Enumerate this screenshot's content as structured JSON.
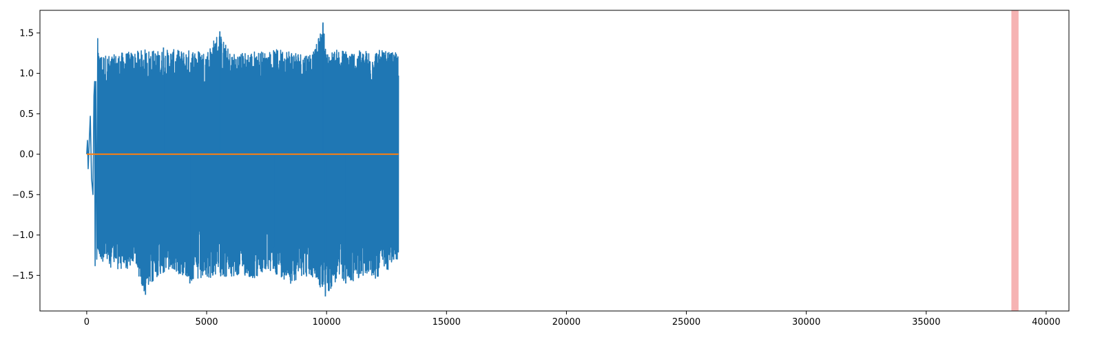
{
  "chart_data": {
    "type": "line",
    "title": "",
    "xlabel": "",
    "ylabel": "",
    "xlim": [
      -1950,
      40950
    ],
    "ylim": [
      -1.94,
      1.78
    ],
    "xticks": [
      0,
      5000,
      10000,
      15000,
      20000,
      25000,
      30000,
      35000,
      40000
    ],
    "xtick_labels": [
      "0",
      "5000",
      "10000",
      "15000",
      "20000",
      "25000",
      "30000",
      "35000",
      "40000"
    ],
    "yticks": [
      -1.5,
      -1.0,
      -0.5,
      0.0,
      0.5,
      1.0,
      1.5
    ],
    "ytick_labels": [
      "−1.5",
      "−1.0",
      "−0.5",
      "0.0",
      "0.5",
      "1.0",
      "1.5"
    ],
    "grid": false,
    "legend": "none",
    "series": [
      {
        "color": "#1f77b4",
        "x_range": [
          0,
          13000
        ],
        "description": "dense oscillating signal",
        "startup": [
          [
            0,
            0.0
          ],
          [
            30,
            0.17
          ],
          [
            60,
            -0.18
          ],
          [
            100,
            0.12
          ],
          [
            150,
            0.47
          ],
          [
            200,
            -0.3
          ],
          [
            260,
            -0.5
          ],
          [
            300,
            0.72
          ],
          [
            330,
            0.9
          ],
          [
            350,
            -1.38
          ],
          [
            380,
            0.9
          ],
          [
            420,
            -1.3
          ],
          [
            460,
            1.43
          ]
        ],
        "envelope_top": [
          [
            500,
            1.25
          ],
          [
            1000,
            1.22
          ],
          [
            1500,
            1.26
          ],
          [
            2000,
            1.27
          ],
          [
            2500,
            1.3
          ],
          [
            3000,
            1.28
          ],
          [
            3500,
            1.3
          ],
          [
            4000,
            1.28
          ],
          [
            4500,
            1.3
          ],
          [
            5000,
            1.27
          ],
          [
            5500,
            1.52
          ],
          [
            6000,
            1.25
          ],
          [
            6500,
            1.26
          ],
          [
            7000,
            1.28
          ],
          [
            7500,
            1.27
          ],
          [
            8000,
            1.3
          ],
          [
            8500,
            1.3
          ],
          [
            9000,
            1.25
          ],
          [
            9500,
            1.28
          ],
          [
            9850,
            1.63
          ],
          [
            10000,
            1.25
          ],
          [
            10500,
            1.3
          ],
          [
            11000,
            1.28
          ],
          [
            11500,
            1.28
          ],
          [
            12000,
            1.3
          ],
          [
            12500,
            1.27
          ],
          [
            13000,
            1.25
          ]
        ],
        "envelope_bottom": [
          [
            500,
            -1.3
          ],
          [
            1000,
            -1.4
          ],
          [
            1500,
            -1.45
          ],
          [
            2000,
            -1.38
          ],
          [
            2450,
            -1.74
          ],
          [
            3000,
            -1.5
          ],
          [
            3500,
            -1.45
          ],
          [
            4000,
            -1.5
          ],
          [
            4500,
            -1.6
          ],
          [
            5000,
            -1.55
          ],
          [
            5500,
            -1.5
          ],
          [
            6000,
            -1.55
          ],
          [
            6500,
            -1.5
          ],
          [
            7000,
            -1.55
          ],
          [
            7500,
            -1.45
          ],
          [
            8000,
            -1.5
          ],
          [
            8500,
            -1.6
          ],
          [
            9000,
            -1.5
          ],
          [
            9500,
            -1.55
          ],
          [
            9950,
            -1.76
          ],
          [
            10500,
            -1.55
          ],
          [
            11000,
            -1.6
          ],
          [
            11500,
            -1.5
          ],
          [
            12000,
            -1.55
          ],
          [
            12500,
            -1.45
          ],
          [
            13000,
            -1.3
          ]
        ],
        "spikes": [
          [
            5550,
            1.52
          ],
          [
            9850,
            1.63
          ],
          [
            2450,
            -1.74
          ],
          [
            9950,
            -1.76
          ],
          [
            7800,
            -1.15
          ],
          [
            4300,
            -1.6
          ],
          [
            10800,
            -1.6
          ],
          [
            3200,
            1.32
          ]
        ]
      },
      {
        "color": "#ff7f0e",
        "x_range": [
          0,
          13000
        ],
        "value": 0.0,
        "description": "flat line at zero"
      }
    ],
    "highlight_span": {
      "x": [
        38550,
        38850
      ],
      "color": "#f08080",
      "opacity": 0.6
    }
  }
}
